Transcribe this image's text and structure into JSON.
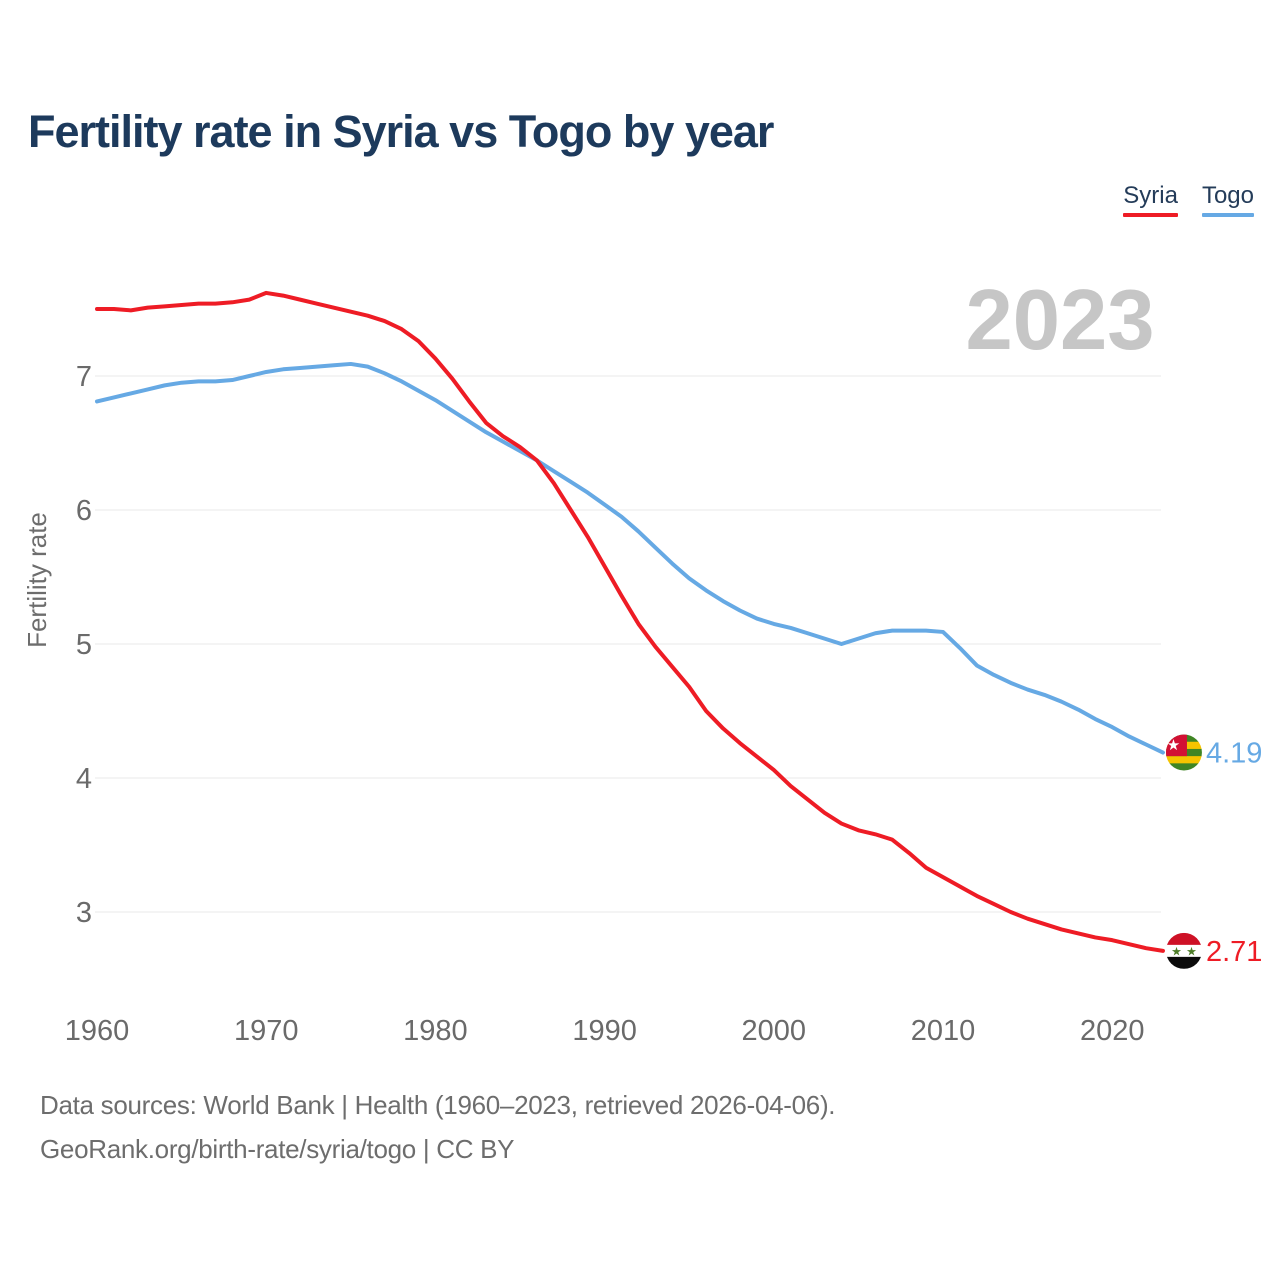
{
  "title": "Fertility rate in Syria vs Togo by year",
  "watermark": "2023",
  "legend": [
    {
      "label": "Syria",
      "color": "#ee1c25"
    },
    {
      "label": "Togo",
      "color": "#66a9e4"
    }
  ],
  "y_axis": {
    "label": "Fertility rate",
    "ticks": [
      7,
      6,
      5,
      4,
      3
    ]
  },
  "x_axis": {
    "ticks": [
      1960,
      1970,
      1980,
      1990,
      2000,
      2010,
      2020
    ]
  },
  "end_labels": {
    "togo": {
      "value": "4.19",
      "flag": "togo-flag"
    },
    "syria": {
      "value": "2.71",
      "flag": "syria-flag"
    }
  },
  "footer": {
    "line1": "Data sources: World Bank | Health (1960–2023, retrieved 2026-04-06).",
    "line2": "GeoRank.org/birth-rate/syria/togo | CC BY"
  },
  "colors": {
    "background": "#ffffff",
    "title": "#1d3a5c",
    "syria_red": "#ee1c25",
    "togo_blue": "#66a9e4",
    "watermark_gray": "#c6c6c6",
    "grid": "#e9e9e9",
    "tick": "#6a6a6a",
    "axis_label": "#6d6d6d",
    "footer": "#6d6d6d",
    "togo_flag": {
      "green": "#3f8524",
      "yellow": "#f5c400",
      "red": "#d21034",
      "star": "#ffffff"
    },
    "syria_flag": {
      "red": "#ce1126",
      "white": "#ffffff",
      "black": "#0b0b0b",
      "star": "#4e7d29"
    }
  },
  "chart_data": {
    "type": "line",
    "title": "Fertility rate in Syria vs Togo by year",
    "xlabel": "",
    "ylabel": "Fertility rate",
    "annotation": "2023",
    "grid": "horizontal",
    "legend_position": "top-right",
    "xlim": [
      1960,
      2023
    ],
    "ylim": [
      2.5,
      7.9
    ],
    "xticks": [
      1960,
      1970,
      1980,
      1990,
      2000,
      2010,
      2020
    ],
    "yticks": [
      7,
      6,
      5,
      4,
      3
    ],
    "x": [
      1960,
      1961,
      1962,
      1963,
      1964,
      1965,
      1966,
      1967,
      1968,
      1969,
      1970,
      1971,
      1972,
      1973,
      1974,
      1975,
      1976,
      1977,
      1978,
      1979,
      1980,
      1981,
      1982,
      1983,
      1984,
      1985,
      1986,
      1987,
      1988,
      1989,
      1990,
      1991,
      1992,
      1993,
      1994,
      1995,
      1996,
      1997,
      1998,
      1999,
      2000,
      2001,
      2002,
      2003,
      2004,
      2005,
      2006,
      2007,
      2008,
      2009,
      2010,
      2011,
      2012,
      2013,
      2014,
      2015,
      2016,
      2017,
      2018,
      2019,
      2020,
      2021,
      2022,
      2023
    ],
    "series": [
      {
        "name": "Togo",
        "color": "#66a9e4",
        "end_label": "4.19",
        "values": [
          6.81,
          6.84,
          6.87,
          6.9,
          6.93,
          6.95,
          6.96,
          6.96,
          6.97,
          7.0,
          7.03,
          7.05,
          7.06,
          7.07,
          7.08,
          7.09,
          7.07,
          7.02,
          6.96,
          6.89,
          6.82,
          6.74,
          6.66,
          6.58,
          6.51,
          6.44,
          6.37,
          6.29,
          6.21,
          6.13,
          6.04,
          5.95,
          5.84,
          5.72,
          5.6,
          5.49,
          5.4,
          5.32,
          5.25,
          5.19,
          5.15,
          5.12,
          5.08,
          5.04,
          5.0,
          5.04,
          5.08,
          5.1,
          5.1,
          5.1,
          5.09,
          4.97,
          4.84,
          4.77,
          4.71,
          4.66,
          4.62,
          4.57,
          4.51,
          4.44,
          4.38,
          4.31,
          4.25,
          4.19
        ]
      },
      {
        "name": "Syria",
        "color": "#ee1c25",
        "end_label": "2.71",
        "values": [
          7.5,
          7.5,
          7.49,
          7.51,
          7.52,
          7.53,
          7.54,
          7.54,
          7.55,
          7.57,
          7.62,
          7.6,
          7.57,
          7.54,
          7.51,
          7.48,
          7.45,
          7.41,
          7.35,
          7.26,
          7.13,
          6.98,
          6.81,
          6.65,
          6.55,
          6.47,
          6.37,
          6.2,
          6.0,
          5.8,
          5.58,
          5.36,
          5.15,
          4.98,
          4.83,
          4.68,
          4.5,
          4.37,
          4.26,
          4.16,
          4.06,
          3.94,
          3.84,
          3.74,
          3.66,
          3.61,
          3.58,
          3.54,
          3.44,
          3.33,
          3.26,
          3.19,
          3.12,
          3.06,
          3.0,
          2.95,
          2.91,
          2.87,
          2.84,
          2.81,
          2.79,
          2.76,
          2.73,
          2.71
        ]
      }
    ]
  }
}
